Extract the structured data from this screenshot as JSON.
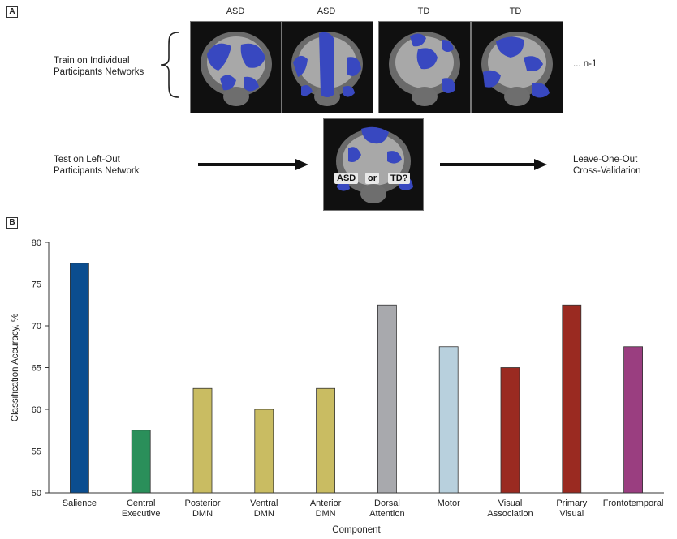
{
  "panel_a": {
    "tag": "A",
    "column_labels": [
      "ASD",
      "ASD",
      "TD",
      "TD"
    ],
    "train_text_line1": "Train on Individual",
    "train_text_line2": "Participants Networks",
    "ellipsis_text": "... n-1",
    "test_text_line1": "Test on Left-Out",
    "test_text_line2": "Participants Network",
    "result_text_line1": "Leave-One-Out",
    "result_text_line2": "Cross-Validation",
    "overlay_asd": "ASD",
    "overlay_or": "or",
    "overlay_td": "TD?"
  },
  "panel_b": {
    "tag": "B"
  },
  "colors": {
    "salience": "#0b4d8f",
    "central_executive": "#2a8f5a",
    "dmn": "#c9bc62",
    "dorsal_attention": "#a8a9ad",
    "motor": "#b8d0dd",
    "visual": "#9a2a21",
    "frontotemporal": "#9a3e80",
    "brain_overlay": "#3848c0"
  },
  "chart_data": {
    "type": "bar",
    "categories": [
      [
        "Salience"
      ],
      [
        "Central",
        "Executive"
      ],
      [
        "Posterior",
        "DMN"
      ],
      [
        "Ventral",
        "DMN"
      ],
      [
        "Anterior",
        "DMN"
      ],
      [
        "Dorsal",
        "Attention"
      ],
      [
        "Motor"
      ],
      [
        "Visual",
        "Association"
      ],
      [
        "Primary",
        "Visual"
      ],
      [
        "Frontotemporal"
      ]
    ],
    "values": [
      77.5,
      57.5,
      62.5,
      60.0,
      62.5,
      72.5,
      67.5,
      65.0,
      72.5,
      67.5
    ],
    "bar_colors": [
      "#0b4d8f",
      "#2a8f5a",
      "#c9bc62",
      "#c9bc62",
      "#c9bc62",
      "#a8a9ad",
      "#b8d0dd",
      "#9a2a21",
      "#9a2a21",
      "#9a3e80"
    ],
    "xlabel": "Component",
    "ylabel": "Classification Accuracy, %",
    "ylim": [
      50,
      80
    ],
    "yticks": [
      50,
      55,
      60,
      65,
      70,
      75,
      80
    ],
    "grid": false
  }
}
